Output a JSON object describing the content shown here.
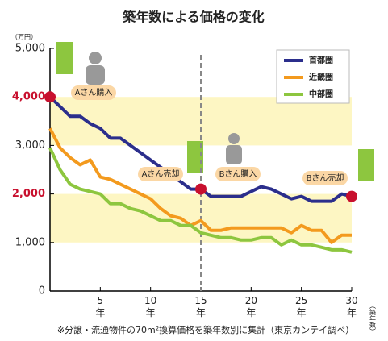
{
  "chart_data": {
    "type": "line",
    "title": "築年数による価格の変化",
    "y_unit": "（万円）",
    "x_label": "（築年数）",
    "footnote": "※分譲・流通物件の70m²換算価格を築年数別に集計（東京カンテイ調べ）",
    "x": [
      0,
      1,
      2,
      3,
      4,
      5,
      6,
      7,
      8,
      9,
      10,
      11,
      12,
      13,
      14,
      15,
      16,
      17,
      18,
      19,
      20,
      21,
      22,
      23,
      24,
      25,
      26,
      27,
      28,
      29,
      30
    ],
    "series": [
      {
        "name": "首都圏",
        "color": "#2b2e8c",
        "values": [
          4000,
          3800,
          3600,
          3600,
          3450,
          3350,
          3150,
          3150,
          3000,
          2850,
          2700,
          2550,
          2400,
          2250,
          2100,
          2100,
          1950,
          1950,
          1950,
          1950,
          2050,
          2150,
          2100,
          2000,
          1900,
          1950,
          1850,
          1850,
          1850,
          2000,
          1950
        ]
      },
      {
        "name": "近畿圏",
        "color": "#f39a1e",
        "values": [
          3350,
          2950,
          2750,
          2600,
          2700,
          2350,
          2300,
          2200,
          2100,
          2000,
          1900,
          1700,
          1550,
          1500,
          1350,
          1450,
          1250,
          1250,
          1300,
          1300,
          1300,
          1300,
          1300,
          1300,
          1200,
          1350,
          1250,
          1250,
          1000,
          1150,
          1150
        ]
      },
      {
        "name": "中部圏",
        "color": "#8dc63f",
        "values": [
          2950,
          2500,
          2200,
          2100,
          2050,
          2000,
          1800,
          1800,
          1700,
          1650,
          1550,
          1450,
          1450,
          1350,
          1350,
          1200,
          1150,
          1100,
          1100,
          1050,
          1050,
          1100,
          1100,
          950,
          1050,
          950,
          950,
          900,
          850,
          850,
          800
        ]
      }
    ],
    "xlim": [
      0,
      30
    ],
    "xticks": [
      {
        "value": 5,
        "label": "5年"
      },
      {
        "value": 10,
        "label": "10年"
      },
      {
        "value": 15,
        "label": "15年"
      },
      {
        "value": 20,
        "label": "20年"
      },
      {
        "value": 25,
        "label": "25年"
      },
      {
        "value": 30,
        "label": "30年"
      }
    ],
    "ylim": [
      0,
      5000
    ],
    "yticks": [
      0,
      {
        "value": 1000,
        "label": "1,000"
      },
      {
        "value": 2000,
        "label": "2,000"
      },
      {
        "value": 3000,
        "label": "3,000"
      },
      {
        "value": 4000,
        "label": "4,000"
      },
      {
        "value": 5000,
        "label": "5,000"
      }
    ],
    "highlight_yticks": [
      2000,
      4000
    ],
    "highlight_color": "#c8102e",
    "bands": [
      [
        1000,
        2000
      ],
      [
        3000,
        4000
      ]
    ],
    "band_color": "#fdf6c3",
    "vline": 15,
    "grid": false,
    "legend": "upper right",
    "annotations": [
      "Aさん購入",
      "Aさん売却",
      "Bさん購入",
      "Bさん売却"
    ]
  }
}
